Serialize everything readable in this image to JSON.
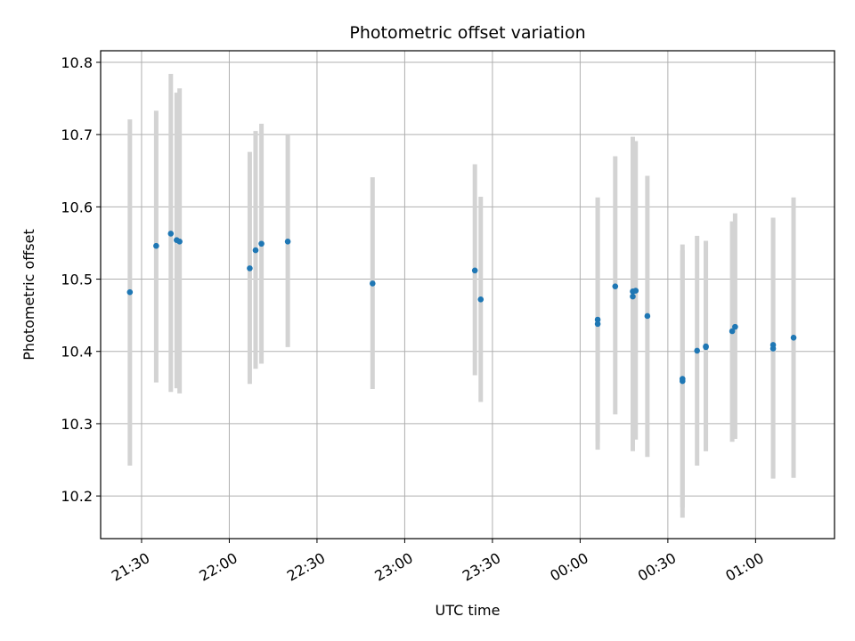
{
  "chart_data": {
    "type": "scatter",
    "title": "Photometric offset variation",
    "xlabel": "UTC time",
    "ylabel": "Photometric offset",
    "grid": true,
    "legend": "none",
    "xlim": [
      "21:16",
      "01:27"
    ],
    "ylim": [
      10.141,
      10.816
    ],
    "x_ticks": [
      "21:30",
      "22:00",
      "22:30",
      "23:00",
      "23:30",
      "00:00",
      "00:30",
      "01:00"
    ],
    "y_ticks": [
      10.2,
      10.3,
      10.4,
      10.5,
      10.6,
      10.7,
      10.8
    ],
    "colors": {
      "point": "#1f77b4",
      "errorbar": "#d3d3d3",
      "grid": "#b0b0b0"
    },
    "points": [
      {
        "time": "21:26",
        "y": 10.482,
        "y_low": 10.242,
        "y_high": 10.721
      },
      {
        "time": "21:35",
        "y": 10.546,
        "y_low": 10.357,
        "y_high": 10.733
      },
      {
        "time": "21:40",
        "y": 10.563,
        "y_low": 10.344,
        "y_high": 10.784
      },
      {
        "time": "21:42",
        "y": 10.554,
        "y_low": 10.349,
        "y_high": 10.758
      },
      {
        "time": "21:43",
        "y": 10.552,
        "y_low": 10.342,
        "y_high": 10.764
      },
      {
        "time": "22:07",
        "y": 10.515,
        "y_low": 10.355,
        "y_high": 10.676
      },
      {
        "time": "22:09",
        "y": 10.54,
        "y_low": 10.376,
        "y_high": 10.705
      },
      {
        "time": "22:11",
        "y": 10.549,
        "y_low": 10.383,
        "y_high": 10.715
      },
      {
        "time": "22:20",
        "y": 10.552,
        "y_low": 10.406,
        "y_high": 10.699
      },
      {
        "time": "22:49",
        "y": 10.494,
        "y_low": 10.348,
        "y_high": 10.641
      },
      {
        "time": "23:24",
        "y": 10.512,
        "y_low": 10.367,
        "y_high": 10.659
      },
      {
        "time": "23:26",
        "y": 10.472,
        "y_low": 10.33,
        "y_high": 10.614
      },
      {
        "time": "00:06",
        "y": 10.444,
        "y_low": 10.275,
        "y_high": 10.613
      },
      {
        "time": "00:06",
        "y": 10.438,
        "y_low": 10.264,
        "y_high": 10.612
      },
      {
        "time": "00:12",
        "y": 10.49,
        "y_low": 10.313,
        "y_high": 10.67
      },
      {
        "time": "00:18",
        "y": 10.483,
        "y_low": 10.27,
        "y_high": 10.697
      },
      {
        "time": "00:18",
        "y": 10.476,
        "y_low": 10.262,
        "y_high": 10.69
      },
      {
        "time": "00:19",
        "y": 10.484,
        "y_low": 10.278,
        "y_high": 10.691
      },
      {
        "time": "00:23",
        "y": 10.449,
        "y_low": 10.254,
        "y_high": 10.643
      },
      {
        "time": "00:35",
        "y": 10.359,
        "y_low": 10.17,
        "y_high": 10.548
      },
      {
        "time": "00:35",
        "y": 10.362,
        "y_low": 10.184,
        "y_high": 10.54
      },
      {
        "time": "00:40",
        "y": 10.401,
        "y_low": 10.242,
        "y_high": 10.56
      },
      {
        "time": "00:43",
        "y": 10.406,
        "y_low": 10.262,
        "y_high": 10.552
      },
      {
        "time": "00:43",
        "y": 10.407,
        "y_low": 10.262,
        "y_high": 10.553
      },
      {
        "time": "00:52",
        "y": 10.428,
        "y_low": 10.275,
        "y_high": 10.58
      },
      {
        "time": "00:53",
        "y": 10.434,
        "y_low": 10.279,
        "y_high": 10.591
      },
      {
        "time": "01:06",
        "y": 10.409,
        "y_low": 10.224,
        "y_high": 10.585
      },
      {
        "time": "01:06",
        "y": 10.404,
        "y_low": 10.225,
        "y_high": 10.584
      },
      {
        "time": "01:13",
        "y": 10.419,
        "y_low": 10.225,
        "y_high": 10.613
      }
    ]
  }
}
